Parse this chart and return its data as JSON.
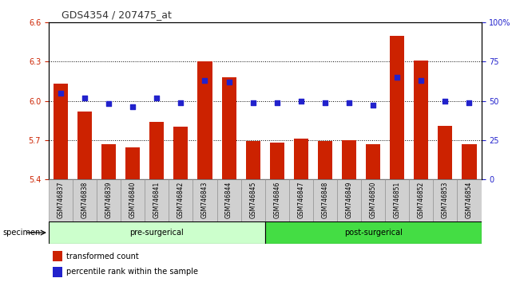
{
  "title": "GDS4354 / 207475_at",
  "categories": [
    "GSM746837",
    "GSM746838",
    "GSM746839",
    "GSM746840",
    "GSM746841",
    "GSM746842",
    "GSM746843",
    "GSM746844",
    "GSM746845",
    "GSM746846",
    "GSM746847",
    "GSM746848",
    "GSM746849",
    "GSM746850",
    "GSM746851",
    "GSM746852",
    "GSM746853",
    "GSM746854"
  ],
  "bar_values": [
    6.13,
    5.92,
    5.67,
    5.64,
    5.84,
    5.8,
    6.3,
    6.18,
    5.69,
    5.68,
    5.71,
    5.69,
    5.7,
    5.67,
    6.5,
    6.31,
    5.81,
    5.67
  ],
  "percentile_values": [
    55,
    52,
    48,
    46,
    52,
    49,
    63,
    62,
    49,
    49,
    50,
    49,
    49,
    47,
    65,
    63,
    50,
    49
  ],
  "bar_color": "#cc2200",
  "percentile_color": "#2222cc",
  "ylim_left": [
    5.4,
    6.6
  ],
  "ylim_right": [
    0,
    100
  ],
  "yticks_left": [
    5.4,
    5.7,
    6.0,
    6.3,
    6.6
  ],
  "yticks_right": [
    0,
    25,
    50,
    75,
    100
  ],
  "ytick_labels_right": [
    "0",
    "25",
    "50",
    "75",
    "100%"
  ],
  "grid_lines": [
    5.7,
    6.0,
    6.3
  ],
  "n_pre": 9,
  "pre_label": "pre-surgerical",
  "post_label": "post-surgerical",
  "specimen_label": "specimen",
  "legend_bar_label": "transformed count",
  "legend_pct_label": "percentile rank within the sample",
  "pre_color": "#ccffcc",
  "post_color": "#44dd44",
  "bar_baseline": 5.4,
  "background_color": "#ffffff"
}
